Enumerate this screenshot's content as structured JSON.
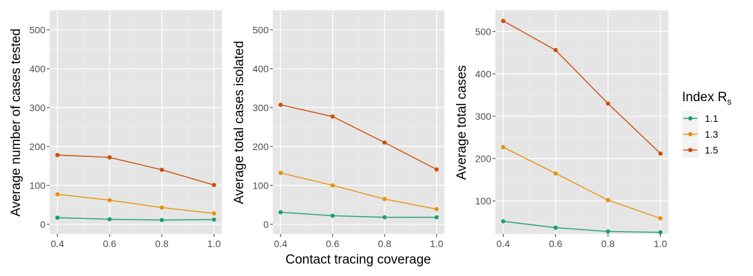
{
  "chart_data": [
    {
      "type": "line",
      "ylabel": "Average number of cases tested",
      "xlabel": "",
      "x": [
        0.4,
        0.6,
        0.8,
        1.0
      ],
      "x_ticks": [
        "0.4",
        "0.6",
        "0.8",
        "1.0"
      ],
      "ylim": [
        -25,
        550
      ],
      "y_ticks": [
        0,
        100,
        200,
        300,
        400,
        500
      ],
      "y_tick_labels": [
        "0",
        "100",
        "200",
        "300",
        "400",
        "500"
      ],
      "series": [
        {
          "name": "1.1",
          "values": [
            17,
            13,
            11,
            12
          ]
        },
        {
          "name": "1.3",
          "values": [
            77,
            62,
            43,
            28
          ]
        },
        {
          "name": "1.5",
          "values": [
            178,
            172,
            140,
            101
          ]
        }
      ]
    },
    {
      "type": "line",
      "ylabel": "Average total cases isolated",
      "xlabel": "Contact tracing coverage",
      "x": [
        0.4,
        0.6,
        0.8,
        1.0
      ],
      "x_ticks": [
        "0.4",
        "0.6",
        "0.8",
        "1.0"
      ],
      "ylim": [
        -25,
        550
      ],
      "y_ticks": [
        0,
        100,
        200,
        300,
        400,
        500
      ],
      "y_tick_labels": [
        "0",
        "100",
        "200",
        "300",
        "400",
        "500"
      ],
      "series": [
        {
          "name": "1.1",
          "values": [
            31,
            22,
            18,
            18
          ]
        },
        {
          "name": "1.3",
          "values": [
            132,
            100,
            65,
            39
          ]
        },
        {
          "name": "1.5",
          "values": [
            307,
            277,
            210,
            141
          ]
        }
      ]
    },
    {
      "type": "line",
      "ylabel": "Average total cases",
      "xlabel": "",
      "x": [
        0.4,
        0.6,
        0.8,
        1.0
      ],
      "x_ticks": [
        "0.4",
        "0.6",
        "0.8",
        "1.0"
      ],
      "ylim": [
        22,
        550
      ],
      "y_ticks": [
        100,
        200,
        300,
        400,
        500
      ],
      "y_tick_labels": [
        "100",
        "200",
        "300",
        "400",
        "500"
      ],
      "series": [
        {
          "name": "1.1",
          "values": [
            52,
            37,
            28,
            26
          ]
        },
        {
          "name": "1.3",
          "values": [
            227,
            165,
            102,
            59
          ]
        },
        {
          "name": "1.5",
          "values": [
            525,
            456,
            330,
            212
          ]
        }
      ]
    }
  ],
  "legend": {
    "title_main": "Index R",
    "title_sub": "s",
    "placement": "right",
    "items": [
      {
        "label": "1.1",
        "color": "#1b9e77"
      },
      {
        "label": "1.3",
        "color": "#e6920a"
      },
      {
        "label": "1.5",
        "color": "#cc4e0c"
      }
    ]
  },
  "style": {
    "panel_background": "#e5e5e5",
    "grid_major": "#ffffff",
    "grid_minor": "#f0f0f0"
  }
}
